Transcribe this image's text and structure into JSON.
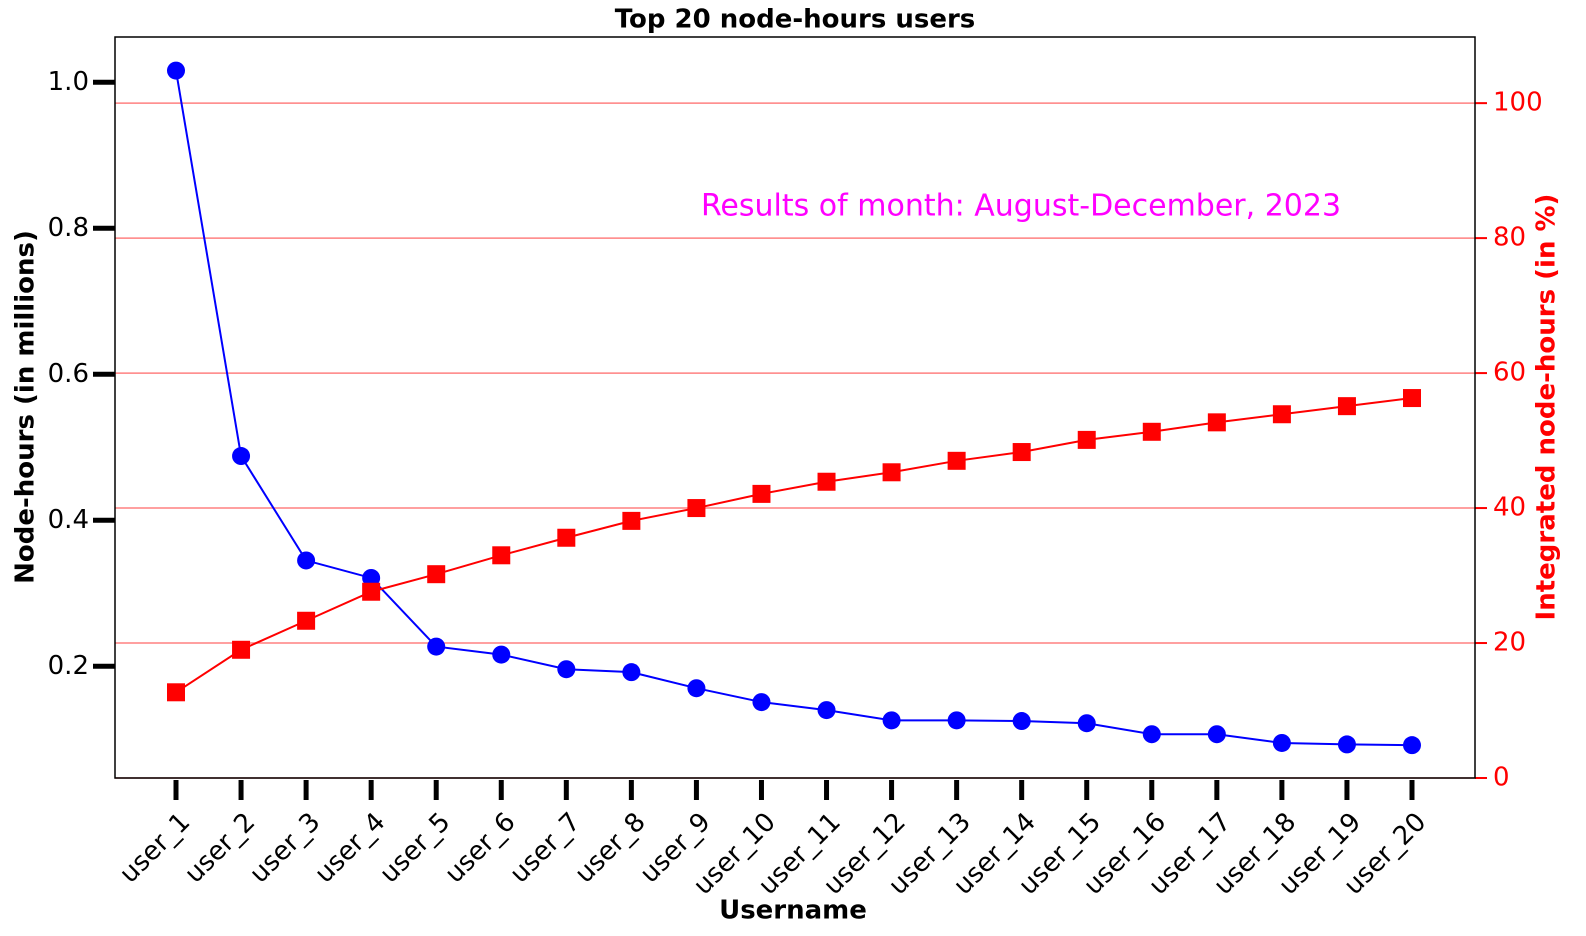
{
  "chart_data": {
    "type": "line",
    "title": "Top 20 node-hours users",
    "xlabel": "Username",
    "ylabel": "Node-hours (in millions)",
    "y2label": "Integrated node-hours (in %)",
    "annotation": "Results of month: August-December, 2023",
    "categories": [
      "user_1",
      "user_2",
      "user_3",
      "user_4",
      "user_5",
      "user_6",
      "user_7",
      "user_8",
      "user_9",
      "user_10",
      "user_11",
      "user_12",
      "user_13",
      "user_14",
      "user_15",
      "user_16",
      "user_17",
      "user_18",
      "user_19",
      "user_20"
    ],
    "series": [
      {
        "color": "#0000ff",
        "marker": "circle",
        "axis": "y",
        "values": [
          1.016,
          0.488,
          0.345,
          0.321,
          0.227,
          0.216,
          0.196,
          0.192,
          0.17,
          0.151,
          0.14,
          0.126,
          0.126,
          0.125,
          0.122,
          0.107,
          0.107,
          0.095,
          0.093,
          0.092
        ]
      },
      {
        "color": "#ff0000",
        "marker": "square",
        "axis": "y2",
        "values": [
          12.7,
          19.0,
          23.3,
          27.6,
          30.2,
          33.0,
          35.6,
          38.1,
          40.0,
          42.1,
          43.9,
          45.3,
          47.0,
          48.3,
          50.1,
          51.3,
          52.7,
          53.9,
          55.1,
          56.3
        ]
      }
    ],
    "ylim": [
      0.047,
      1.062
    ],
    "yticks": [
      {
        "value": 0.2,
        "label": "0.2"
      },
      {
        "value": 0.4,
        "label": "0.4"
      },
      {
        "value": 0.6,
        "label": "0.6"
      },
      {
        "value": 0.8,
        "label": "0.8"
      },
      {
        "value": 1.0,
        "label": "1.0"
      }
    ],
    "y2lim": [
      0,
      109.8
    ],
    "y2ticks": [
      0,
      20,
      40,
      60,
      80,
      100
    ],
    "grid": "y2",
    "grid_color": "#ff8080",
    "annotation_color": "#ff00ff",
    "y2_color": "#ff0000"
  }
}
